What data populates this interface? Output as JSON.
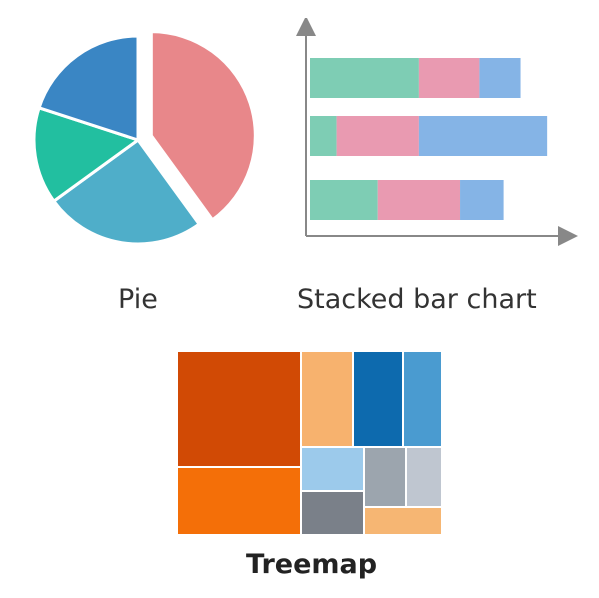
{
  "captions": {
    "pie": "Pie",
    "stacked_bar": "Stacked bar chart",
    "treemap": "Treemap"
  },
  "pie": {
    "slices": [
      {
        "value": 40,
        "color": "#E8878A",
        "exploded": true
      },
      {
        "value": 25,
        "color": "#4FAEC9"
      },
      {
        "value": 15,
        "color": "#22BFA0"
      },
      {
        "value": 20,
        "color": "#3A86C4"
      }
    ]
  },
  "stacked_bar": {
    "segment_colors": [
      "#7ECDB4",
      "#E99AB1",
      "#85B4E6"
    ],
    "bars": [
      [
        45,
        25,
        17
      ],
      [
        11,
        34,
        53
      ],
      [
        28,
        34,
        18
      ]
    ],
    "max_total": 100
  },
  "treemap": {
    "tiles": [
      {
        "id": "a",
        "color": "#D14A05"
      },
      {
        "id": "b",
        "color": "#F46F08"
      },
      {
        "id": "c",
        "color": "#F7B26E"
      },
      {
        "id": "d",
        "color": "#0D6AAE"
      },
      {
        "id": "e",
        "color": "#4A9BD0"
      },
      {
        "id": "f",
        "color": "#9CCAEB"
      },
      {
        "id": "g",
        "color": "#9CA5AE"
      },
      {
        "id": "h",
        "color": "#BFC6D0"
      },
      {
        "id": "i",
        "color": "#7A8089"
      },
      {
        "id": "j",
        "color": "#F6B673"
      }
    ]
  }
}
